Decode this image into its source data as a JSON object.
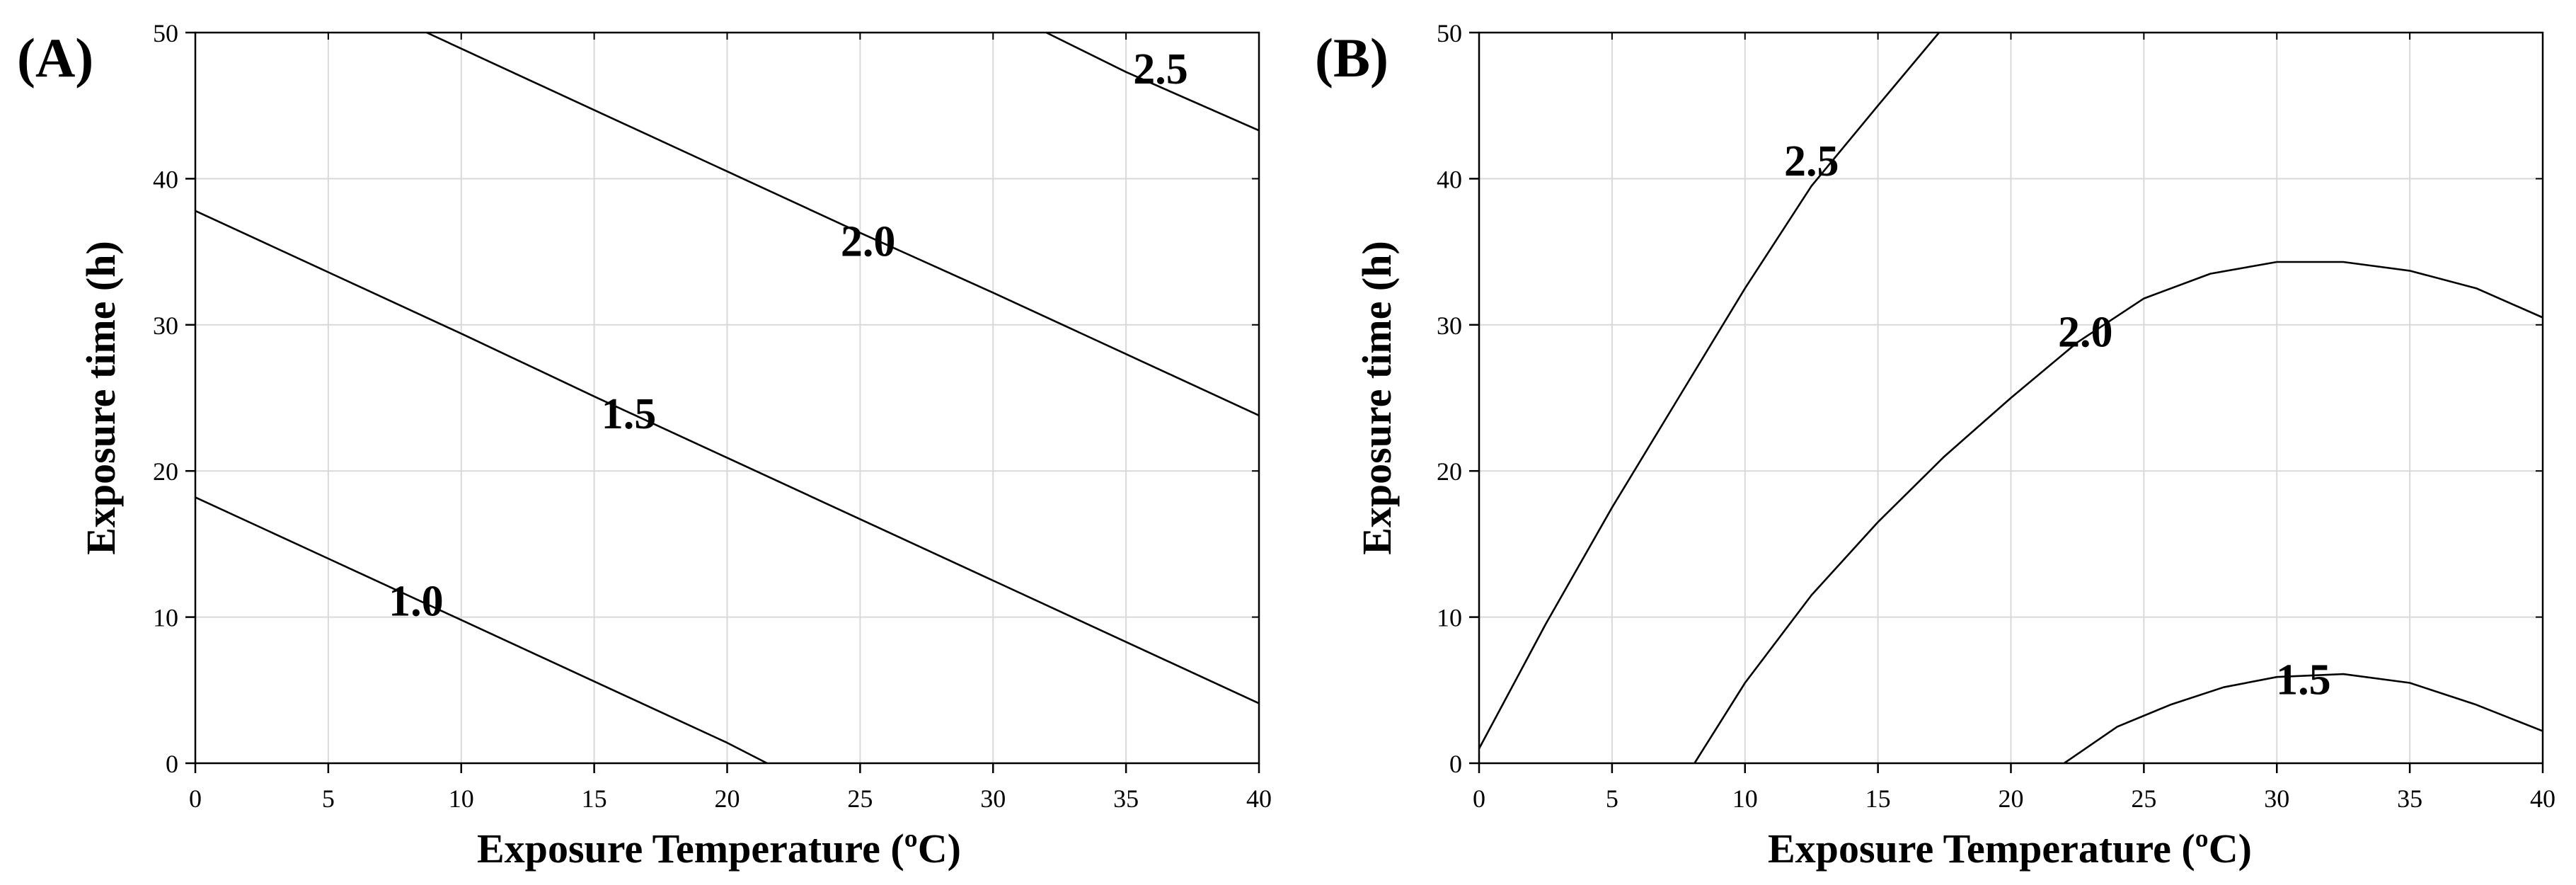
{
  "chart_data": [
    {
      "type": "contour",
      "panel_label": "(A)",
      "xlabel": "Exposure Temperature (ºC)",
      "ylabel": "Exposure time (h)",
      "xlim": [
        0,
        40
      ],
      "ylim": [
        0,
        50
      ],
      "xticks": [
        0,
        5,
        10,
        15,
        20,
        25,
        30,
        35,
        40
      ],
      "yticks": [
        0,
        10,
        20,
        30,
        40,
        50
      ],
      "grid": true,
      "contours": [
        {
          "level": "1.0",
          "points": [
            [
              0,
              18.2
            ],
            [
              5,
              14.0
            ],
            [
              10,
              9.8
            ],
            [
              15,
              5.6
            ],
            [
              20,
              1.4
            ],
            [
              21.5,
              0
            ]
          ],
          "label_at": [
            8.3,
            10.5
          ]
        },
        {
          "level": "1.5",
          "points": [
            [
              0,
              37.8
            ],
            [
              5,
              33.6
            ],
            [
              10,
              29.4
            ],
            [
              15,
              25.1
            ],
            [
              20,
              20.9
            ],
            [
              25,
              16.7
            ],
            [
              30,
              12.5
            ],
            [
              35,
              8.3
            ],
            [
              40,
              4.1
            ]
          ],
          "label_at": [
            16.3,
            23.3
          ]
        },
        {
          "level": "2.0",
          "points": [
            [
              8.7,
              50
            ],
            [
              10,
              48.9
            ],
            [
              15,
              44.7
            ],
            [
              20,
              40.5
            ],
            [
              25,
              36.3
            ],
            [
              30,
              32.2
            ],
            [
              35,
              28.0
            ],
            [
              40,
              23.8
            ]
          ],
          "label_at": [
            25.3,
            35.1
          ]
        },
        {
          "level": "2.5",
          "points": [
            [
              32,
              50
            ],
            [
              35,
              47.3
            ],
            [
              40,
              43.3
            ]
          ],
          "label_at": [
            36.3,
            46.9
          ]
        }
      ]
    },
    {
      "type": "contour",
      "panel_label": "(B)",
      "xlabel": "Exposure Temperature (ºC)",
      "ylabel": "Exposure time (h)",
      "xlim": [
        0,
        40
      ],
      "ylim": [
        0,
        50
      ],
      "xticks": [
        0,
        5,
        10,
        15,
        20,
        25,
        30,
        35,
        40
      ],
      "yticks": [
        0,
        10,
        20,
        30,
        40,
        50
      ],
      "grid": true,
      "contours": [
        {
          "level": "2.5",
          "points": [
            [
              0,
              1
            ],
            [
              2.5,
              9.5
            ],
            [
              5,
              17.5
            ],
            [
              7.5,
              25
            ],
            [
              10,
              32.5
            ],
            [
              12.5,
              39.5
            ],
            [
              15,
              45
            ],
            [
              17.3,
              50
            ]
          ],
          "label_at": [
            12.5,
            40.6
          ]
        },
        {
          "level": "2.0",
          "points": [
            [
              8.1,
              0
            ],
            [
              10,
              5.5
            ],
            [
              12.5,
              11.5
            ],
            [
              15,
              16.5
            ],
            [
              17.5,
              21
            ],
            [
              20,
              25
            ],
            [
              22.5,
              28.8
            ],
            [
              25,
              31.8
            ],
            [
              27.5,
              33.5
            ],
            [
              30,
              34.3
            ],
            [
              32.5,
              34.3
            ],
            [
              35,
              33.7
            ],
            [
              37.5,
              32.5
            ],
            [
              40,
              30.5
            ]
          ],
          "label_at": [
            22.8,
            28.9
          ]
        },
        {
          "level": "1.5",
          "points": [
            [
              22,
              0
            ],
            [
              24,
              2.5
            ],
            [
              26,
              4
            ],
            [
              28,
              5.2
            ],
            [
              30,
              5.9
            ],
            [
              32.5,
              6.1
            ],
            [
              35,
              5.5
            ],
            [
              37.5,
              4
            ],
            [
              40,
              2.2
            ]
          ],
          "label_at": [
            31.0,
            5.1
          ]
        }
      ]
    }
  ]
}
